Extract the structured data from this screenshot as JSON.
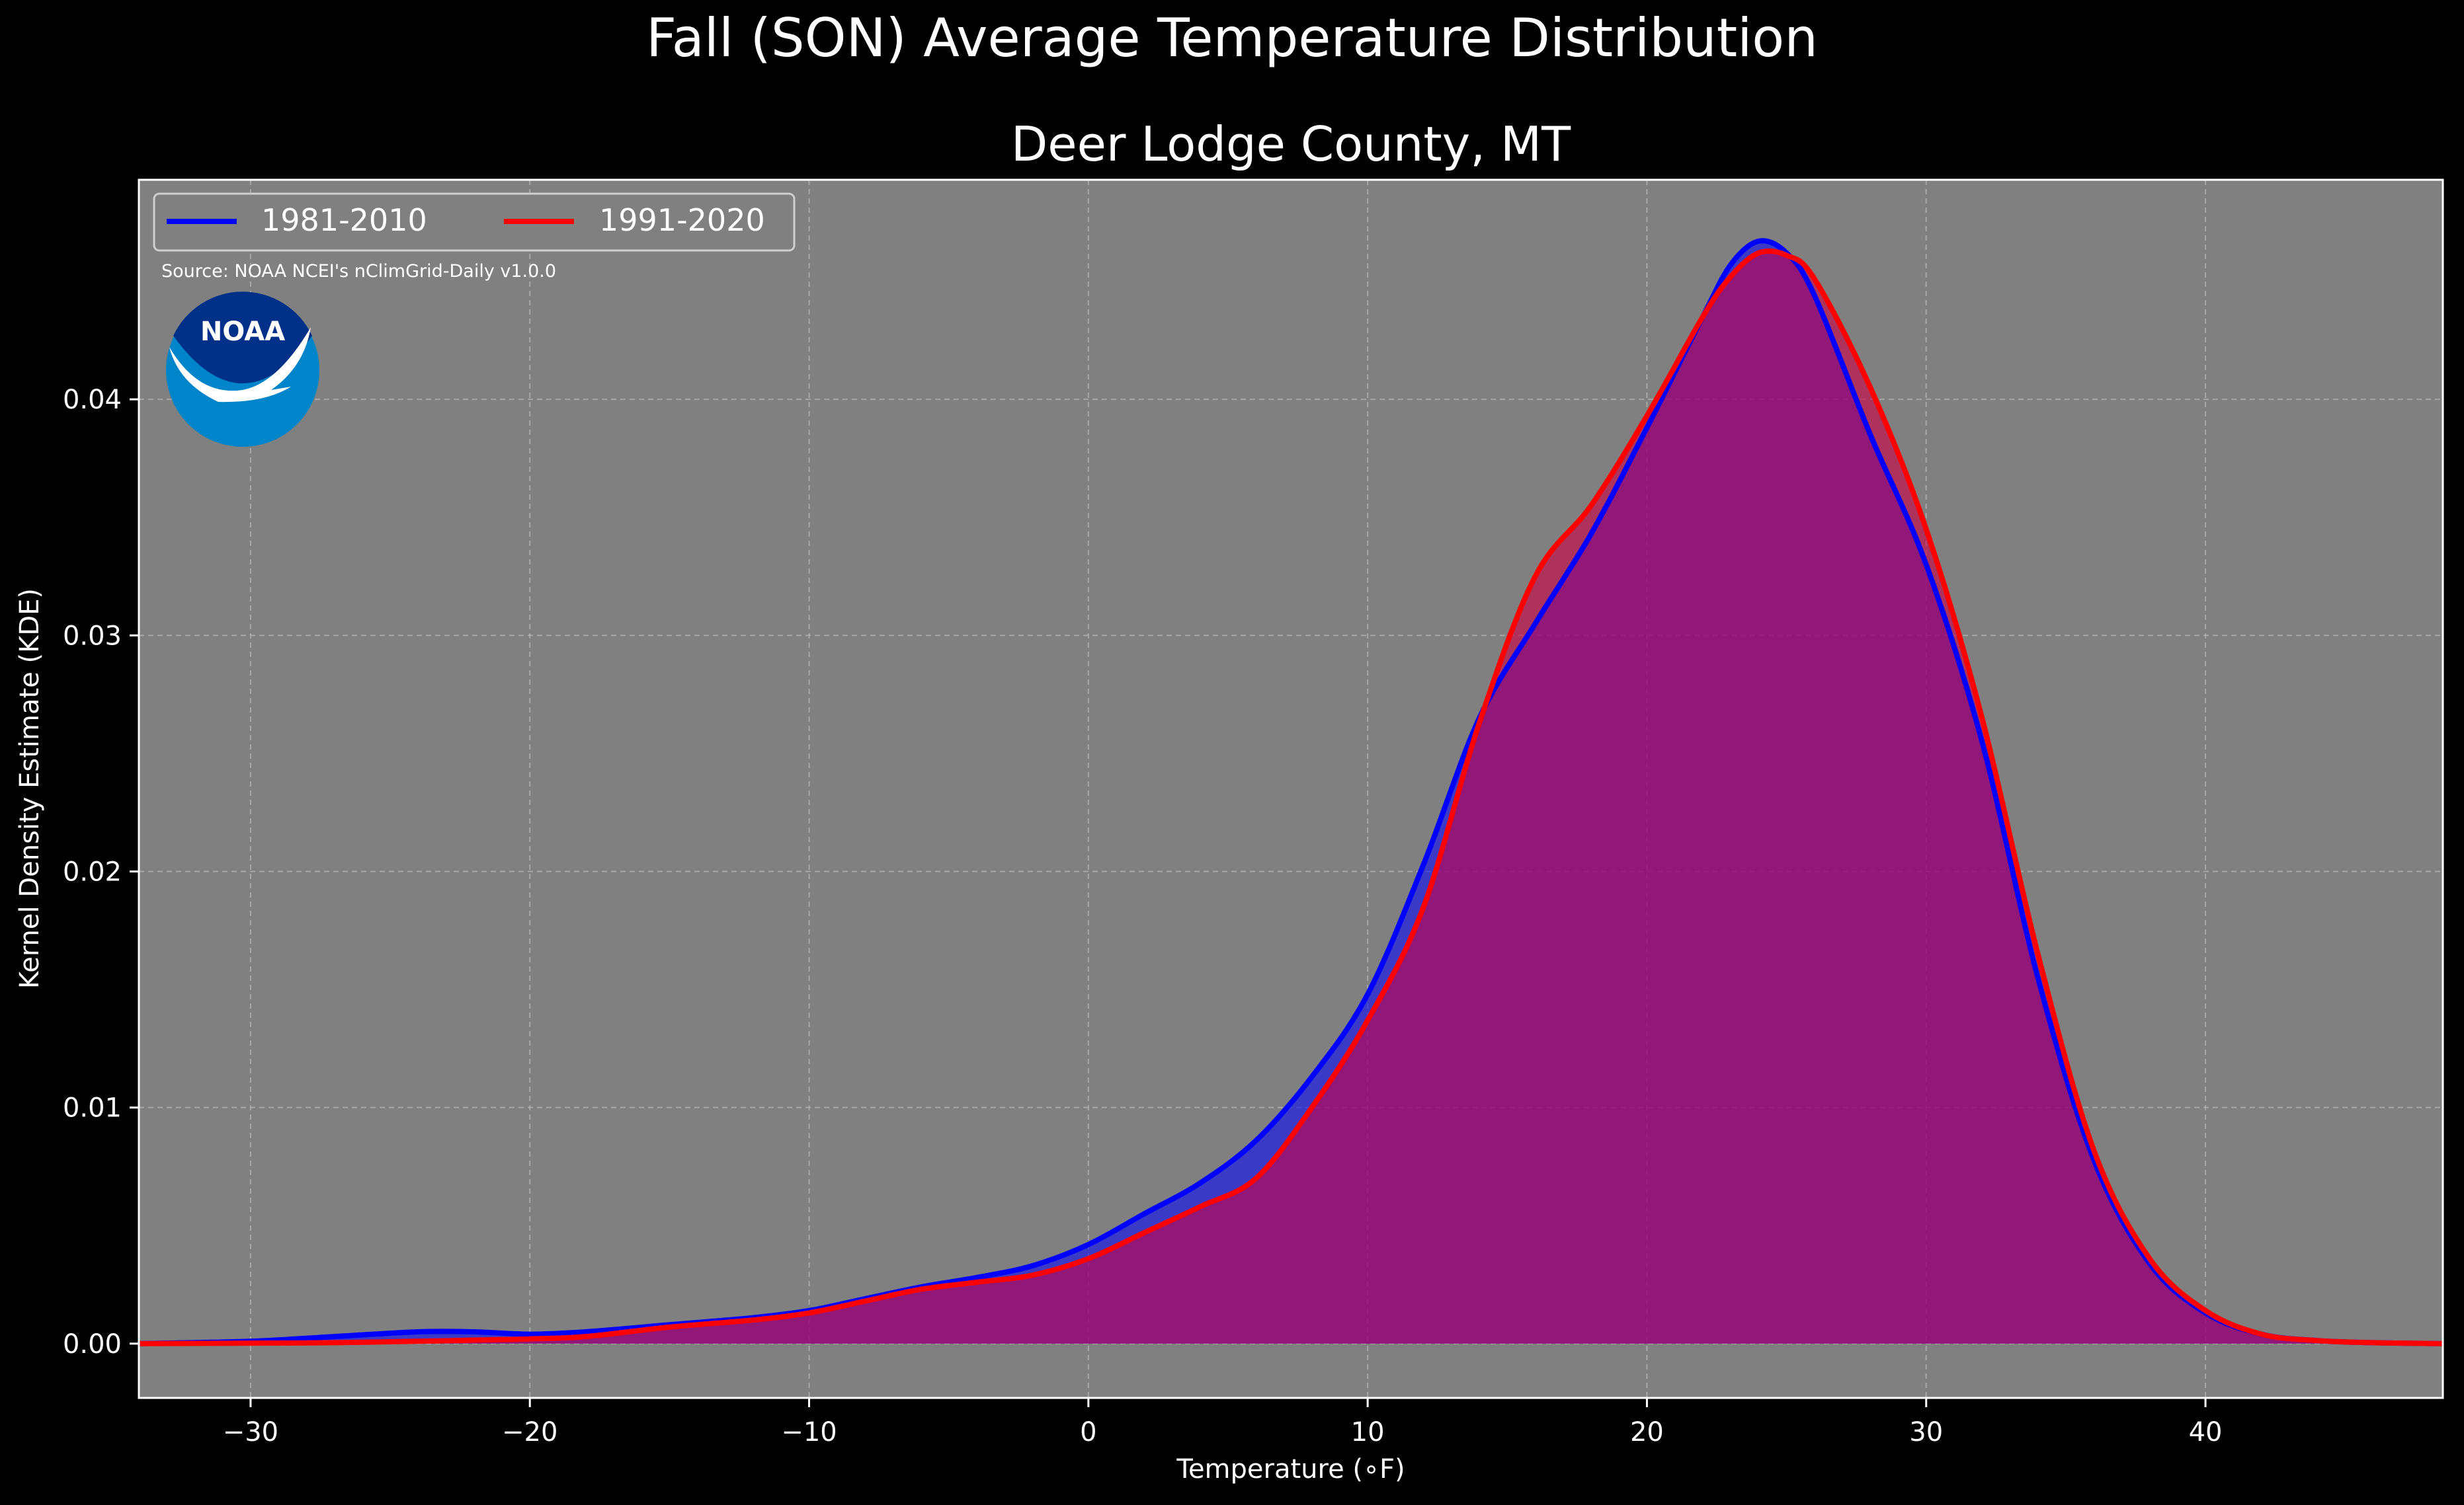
{
  "figure": {
    "title": "Fall (SON) Average Temperature Distribution",
    "background": "#000000"
  },
  "chart_data": {
    "type": "area",
    "title": "Deer Lodge County, MT",
    "xlabel": "Temperature (∘F)",
    "ylabel": "Kernel Density Estimate (KDE)",
    "xlim": [
      -34,
      48.5
    ],
    "ylim": [
      -0.0023,
      0.0493
    ],
    "x_ticks": [
      -30,
      -20,
      -10,
      0,
      10,
      20,
      30,
      40
    ],
    "x_tick_labels": [
      "−30",
      "−20",
      "−10",
      "0",
      "10",
      "20",
      "30",
      "40"
    ],
    "y_ticks": [
      0.0,
      0.01,
      0.02,
      0.03,
      0.04
    ],
    "y_tick_labels": [
      "0.00",
      "0.01",
      "0.02",
      "0.03",
      "0.04"
    ],
    "grid": true,
    "plot_background": "#808080",
    "legend_position": "top-left",
    "annotation": "Source: NOAA NCEI's nClimGrid-Daily v1.0.0",
    "logo": {
      "text": "NOAA",
      "outer_color": "#0085CA",
      "inner_color": "#003087"
    },
    "series": [
      {
        "name": "1981-2010",
        "color": "#0000FF",
        "fill": "#0000FF",
        "x": [
          -34,
          -30,
          -27,
          -24,
          -22,
          -20,
          -18,
          -15,
          -12,
          -10,
          -8,
          -6,
          -4,
          -2,
          0,
          2,
          4,
          6,
          8,
          10,
          12,
          14,
          16,
          18,
          20,
          22,
          23,
          24,
          25,
          26,
          28,
          30,
          32,
          34,
          36,
          38,
          40,
          42,
          44,
          46,
          48.5
        ],
        "y": [
          0.0,
          0.0001,
          0.0003,
          0.0005,
          0.0005,
          0.0004,
          0.0005,
          0.0008,
          0.0011,
          0.0014,
          0.0019,
          0.0024,
          0.0028,
          0.0033,
          0.0042,
          0.0055,
          0.0068,
          0.0086,
          0.0113,
          0.0148,
          0.0203,
          0.0265,
          0.0305,
          0.0343,
          0.0388,
          0.0435,
          0.0457,
          0.0467,
          0.0462,
          0.0444,
          0.0385,
          0.033,
          0.0255,
          0.0155,
          0.0078,
          0.0034,
          0.0013,
          0.0004,
          0.00013,
          4e-05,
          0.0
        ]
      },
      {
        "name": "1991-2020",
        "color": "#FF0000",
        "fill": "#CC0044",
        "x": [
          -34,
          -30,
          -27,
          -24,
          -22,
          -20,
          -18,
          -15,
          -12,
          -10,
          -8,
          -6,
          -4,
          -2,
          0,
          2,
          4,
          6,
          8,
          10,
          12,
          14,
          16,
          18,
          20,
          22,
          23,
          24,
          25,
          26,
          28,
          30,
          32,
          34,
          36,
          38,
          40,
          42,
          44,
          46,
          48.5
        ],
        "y": [
          0.0,
          2e-05,
          4e-05,
          0.0001,
          0.00015,
          0.0002,
          0.0003,
          0.0007,
          0.001,
          0.0013,
          0.0018,
          0.0023,
          0.0026,
          0.0029,
          0.0036,
          0.0047,
          0.0058,
          0.007,
          0.01,
          0.0137,
          0.0185,
          0.0263,
          0.0325,
          0.0355,
          0.0393,
          0.0435,
          0.0452,
          0.0462,
          0.0461,
          0.0451,
          0.0405,
          0.0345,
          0.0265,
          0.0165,
          0.0082,
          0.0036,
          0.0014,
          0.0004,
          0.00013,
          4e-05,
          0.0
        ]
      }
    ]
  }
}
